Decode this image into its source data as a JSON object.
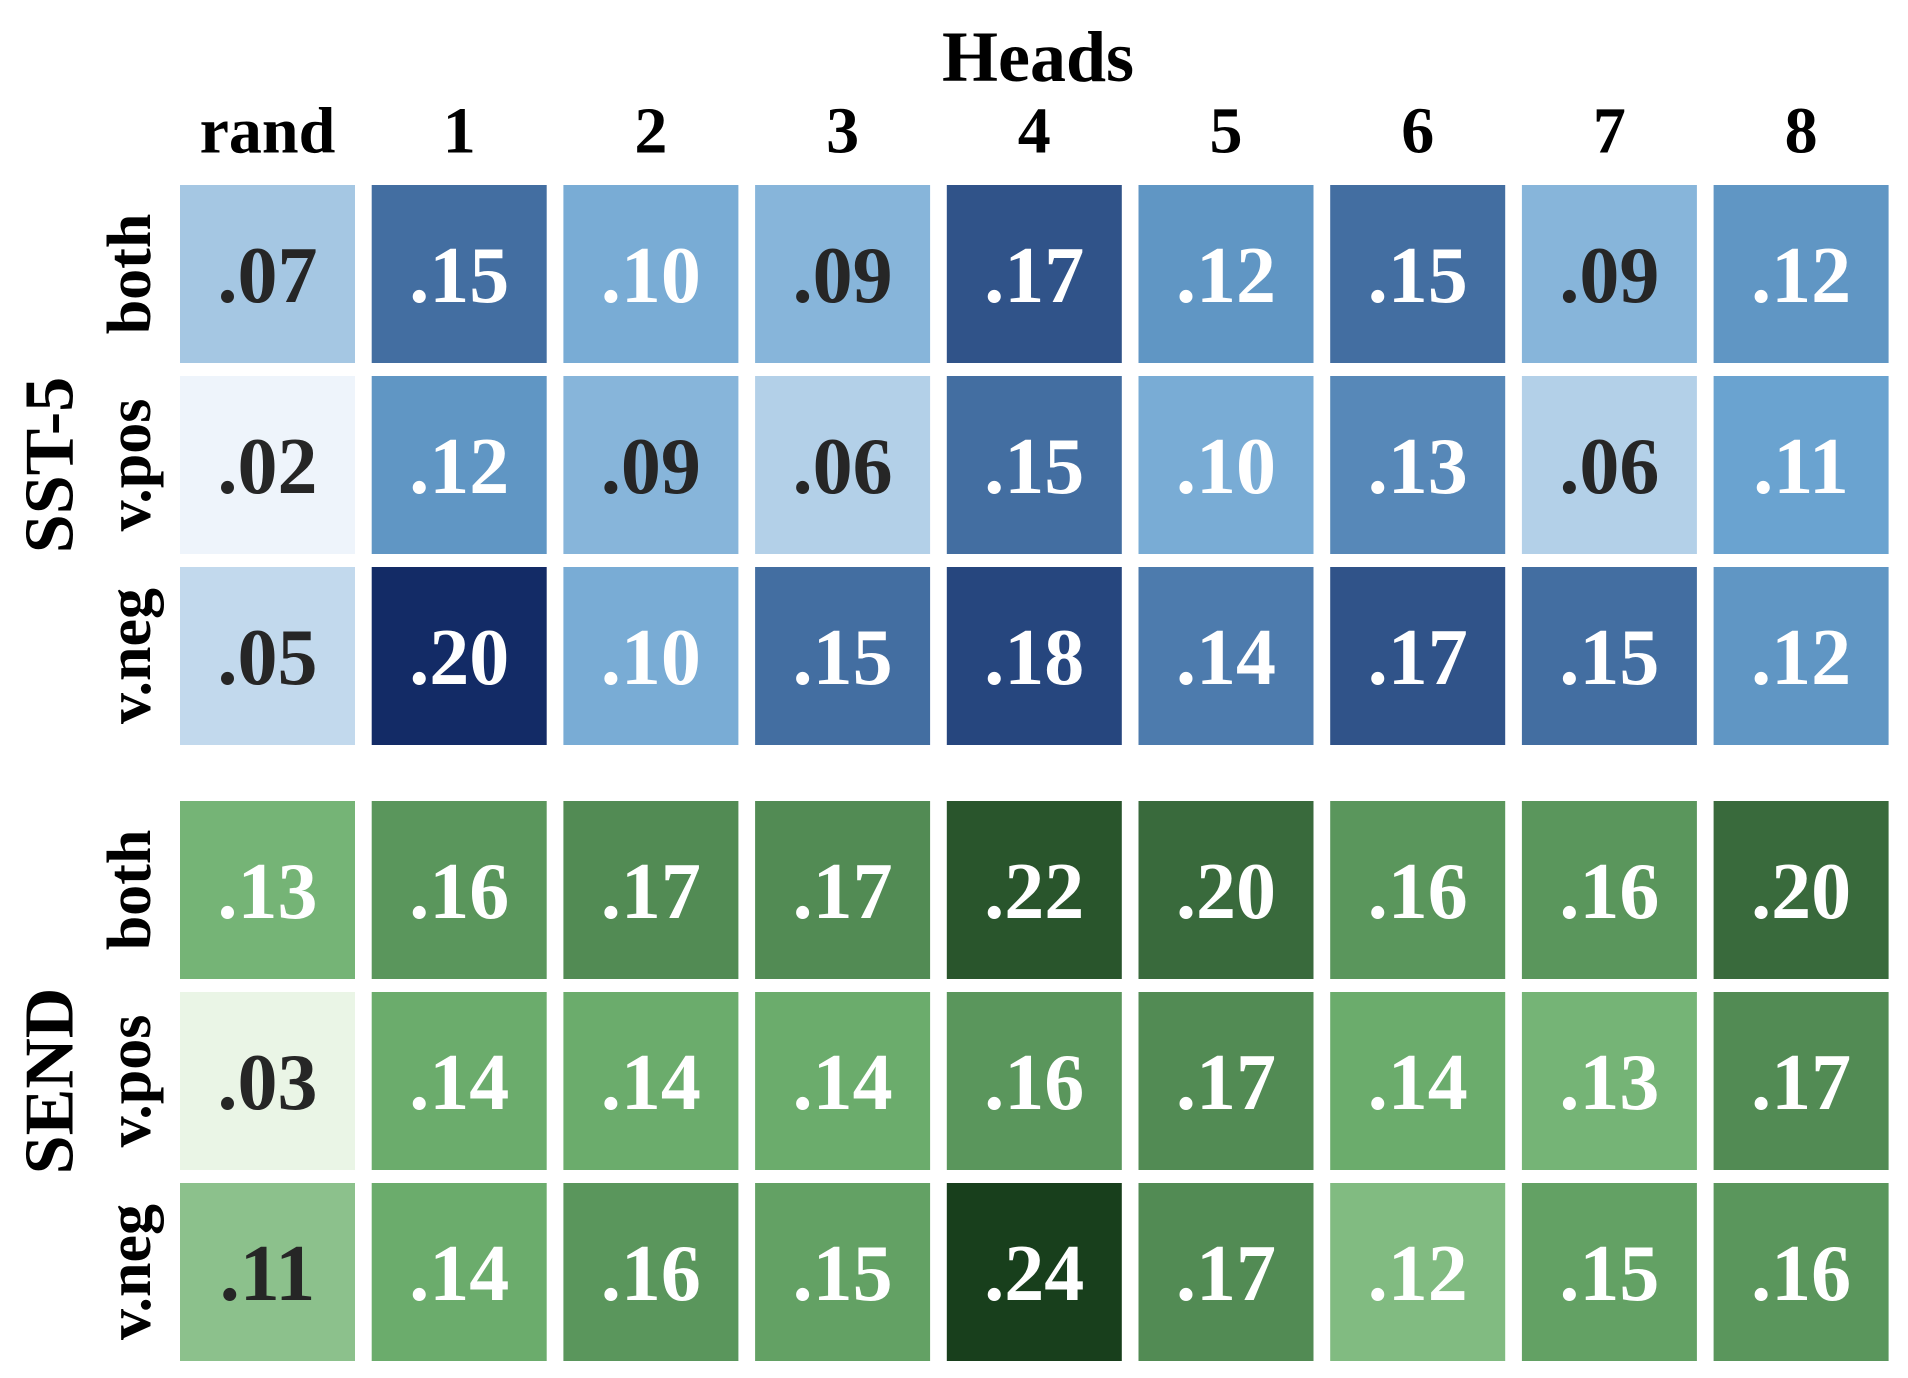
{
  "chart_data": [
    {
      "type": "heatmap",
      "title": "Heads",
      "group_label": "SST-5",
      "x_categories": [
        "rand",
        "1",
        "2",
        "3",
        "4",
        "5",
        "6",
        "7",
        "8"
      ],
      "y_categories": [
        "both",
        "v.pos",
        "v.neg"
      ],
      "colormap": [
        "#eef4fb",
        "#6aa3d0",
        "#132b66"
      ],
      "values": [
        [
          0.07,
          0.15,
          0.1,
          0.09,
          0.17,
          0.12,
          0.15,
          0.09,
          0.12
        ],
        [
          0.02,
          0.12,
          0.09,
          0.06,
          0.15,
          0.1,
          0.13,
          0.06,
          0.11
        ],
        [
          0.05,
          0.2,
          0.1,
          0.15,
          0.18,
          0.14,
          0.17,
          0.15,
          0.12
        ]
      ],
      "value_labels": [
        [
          ".07",
          ".15",
          ".10",
          ".09",
          ".17",
          ".12",
          ".15",
          ".09",
          ".12"
        ],
        [
          ".02",
          ".12",
          ".09",
          ".06",
          ".15",
          ".10",
          ".13",
          ".06",
          ".11"
        ],
        [
          ".05",
          ".20",
          ".10",
          ".15",
          ".18",
          ".14",
          ".17",
          ".15",
          ".12"
        ]
      ]
    },
    {
      "type": "heatmap",
      "group_label": "SEND",
      "y_categories": [
        "both",
        "v.pos",
        "v.neg"
      ],
      "colormap": [
        "#eaf5e6",
        "#6fb170",
        "#183f1c"
      ],
      "values": [
        [
          0.13,
          0.16,
          0.17,
          0.17,
          0.22,
          0.2,
          0.16,
          0.16,
          0.2
        ],
        [
          0.03,
          0.14,
          0.14,
          0.14,
          0.16,
          0.17,
          0.14,
          0.13,
          0.17
        ],
        [
          0.11,
          0.14,
          0.16,
          0.15,
          0.24,
          0.17,
          0.12,
          0.15,
          0.16
        ]
      ],
      "value_labels": [
        [
          ".13",
          ".16",
          ".17",
          ".17",
          ".22",
          ".20",
          ".16",
          ".16",
          ".20"
        ],
        [
          ".03",
          ".14",
          ".14",
          ".14",
          ".16",
          ".17",
          ".14",
          ".13",
          ".17"
        ],
        [
          ".11",
          ".14",
          ".16",
          ".15",
          ".24",
          ".17",
          ".12",
          ".15",
          ".16"
        ]
      ]
    }
  ]
}
